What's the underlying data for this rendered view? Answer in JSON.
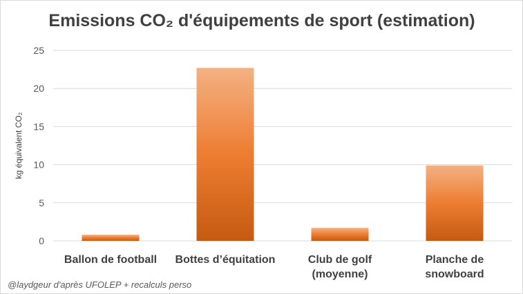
{
  "chart_data": {
    "type": "bar",
    "title": "Emissions CO₂ d'équipements de sport (estimation)",
    "ylabel": "kg équivalent CO₂",
    "xlabel": "",
    "categories": [
      [
        "Ballon de football"
      ],
      [
        "Bottes d’équitation"
      ],
      [
        "Club de golf",
        "(moyenne)"
      ],
      [
        "Planche de",
        "snowboard"
      ]
    ],
    "values": [
      0.8,
      22.7,
      1.7,
      9.9
    ],
    "ylim": [
      0,
      25
    ],
    "yticks": [
      0,
      5,
      10,
      15,
      20,
      25
    ],
    "grid": true,
    "legend": "none",
    "colors": {
      "bar_top": "#f4b183",
      "bar_mid": "#ed7d31",
      "bar_bottom": "#c55a11",
      "grid": "#d9d9d9"
    }
  },
  "footer": {
    "credit": "@laydgeur d'après UFOLEP + recalculs perso"
  }
}
